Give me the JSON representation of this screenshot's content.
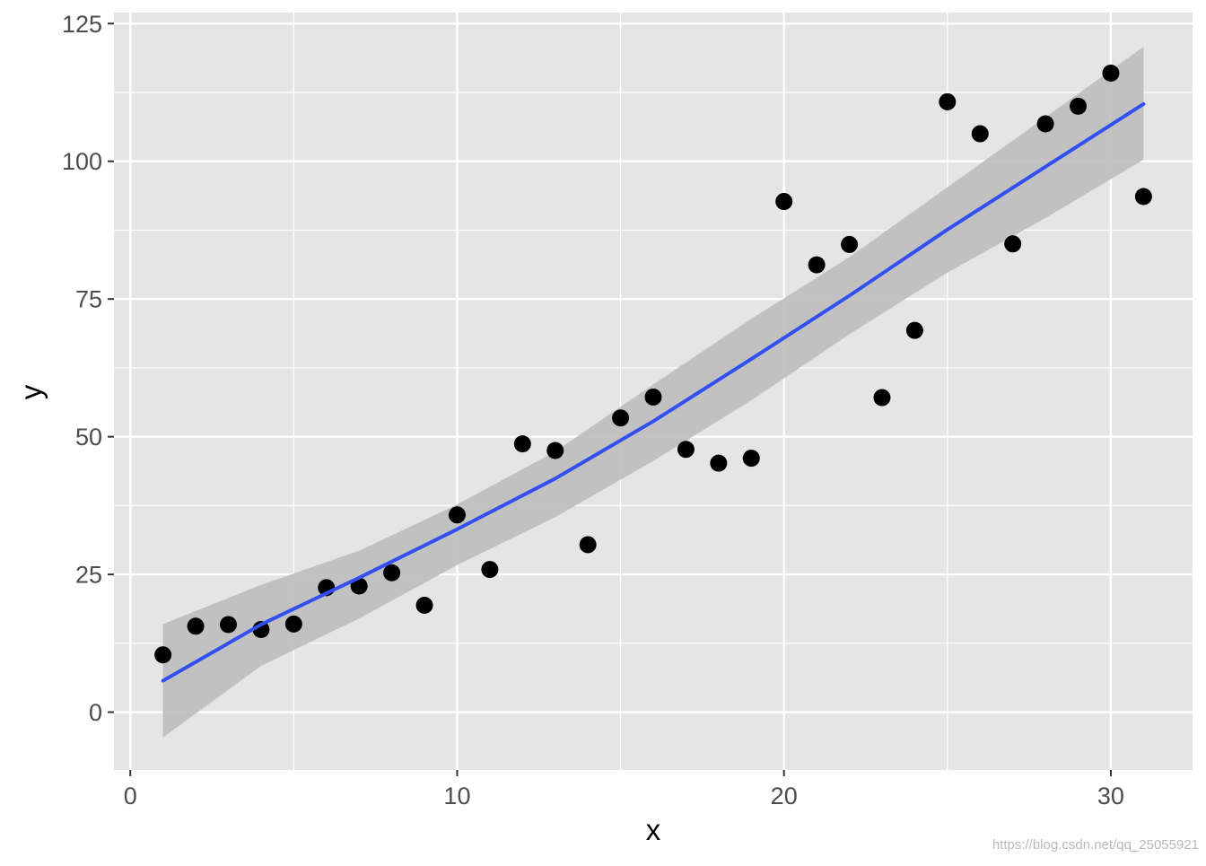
{
  "chart_data": {
    "type": "scatter",
    "title": "",
    "xlabel": "x",
    "ylabel": "y",
    "xlim": [
      -0.5,
      32.5
    ],
    "ylim": [
      -10.5,
      127
    ],
    "x_ticks": [
      0,
      10,
      20,
      30
    ],
    "x_tick_labels": [
      "0",
      "10",
      "20",
      "30"
    ],
    "x_minor_ticks": [
      5,
      15,
      25
    ],
    "y_ticks": [
      0,
      25,
      50,
      75,
      100,
      125
    ],
    "y_tick_labels": [
      "0",
      "25",
      "50",
      "75",
      "100",
      "125"
    ],
    "y_minor_ticks": [
      12.5,
      37.5,
      62.5,
      87.5,
      112.5
    ],
    "grid": true,
    "legend": "none",
    "colors": {
      "panel": "#e5e5e5",
      "grid": "#ffffff",
      "points": "#000000",
      "fit_line": "#3250f2",
      "ribbon": "#bdbdbd"
    },
    "points": {
      "x": [
        1,
        2,
        3,
        4,
        5,
        6,
        7,
        8,
        9,
        10,
        11,
        12,
        13,
        14,
        15,
        16,
        17,
        18,
        19,
        20,
        21,
        22,
        23,
        24,
        25,
        26,
        27,
        28,
        29,
        30,
        31
      ],
      "y": [
        10.4,
        15.6,
        15.9,
        15.0,
        16.0,
        22.6,
        22.9,
        25.3,
        19.4,
        35.8,
        25.9,
        48.7,
        47.5,
        30.4,
        53.4,
        57.2,
        47.7,
        45.2,
        46.1,
        92.7,
        81.2,
        84.9,
        57.1,
        69.3,
        110.8,
        105.0,
        85.0,
        106.8,
        110.0,
        116.0,
        93.6
      ]
    },
    "fit": {
      "method": "smooth",
      "x": [
        1,
        4,
        7,
        10,
        13,
        16,
        19,
        22,
        25,
        28,
        31
      ],
      "y": [
        5.7,
        15.9,
        24.4,
        33.2,
        42.4,
        52.8,
        64.1,
        75.6,
        87.6,
        99.0,
        110.4
      ],
      "lower": [
        -4.6,
        8.4,
        17.0,
        26.7,
        35.4,
        45.6,
        56.6,
        68.6,
        79.8,
        89.7,
        100.3
      ],
      "upper": [
        16.0,
        23.1,
        29.3,
        37.7,
        47.3,
        59.5,
        71.4,
        82.6,
        95.3,
        108.0,
        120.8
      ]
    }
  },
  "watermark": "https://blog.csdn.net/qq_25055921"
}
